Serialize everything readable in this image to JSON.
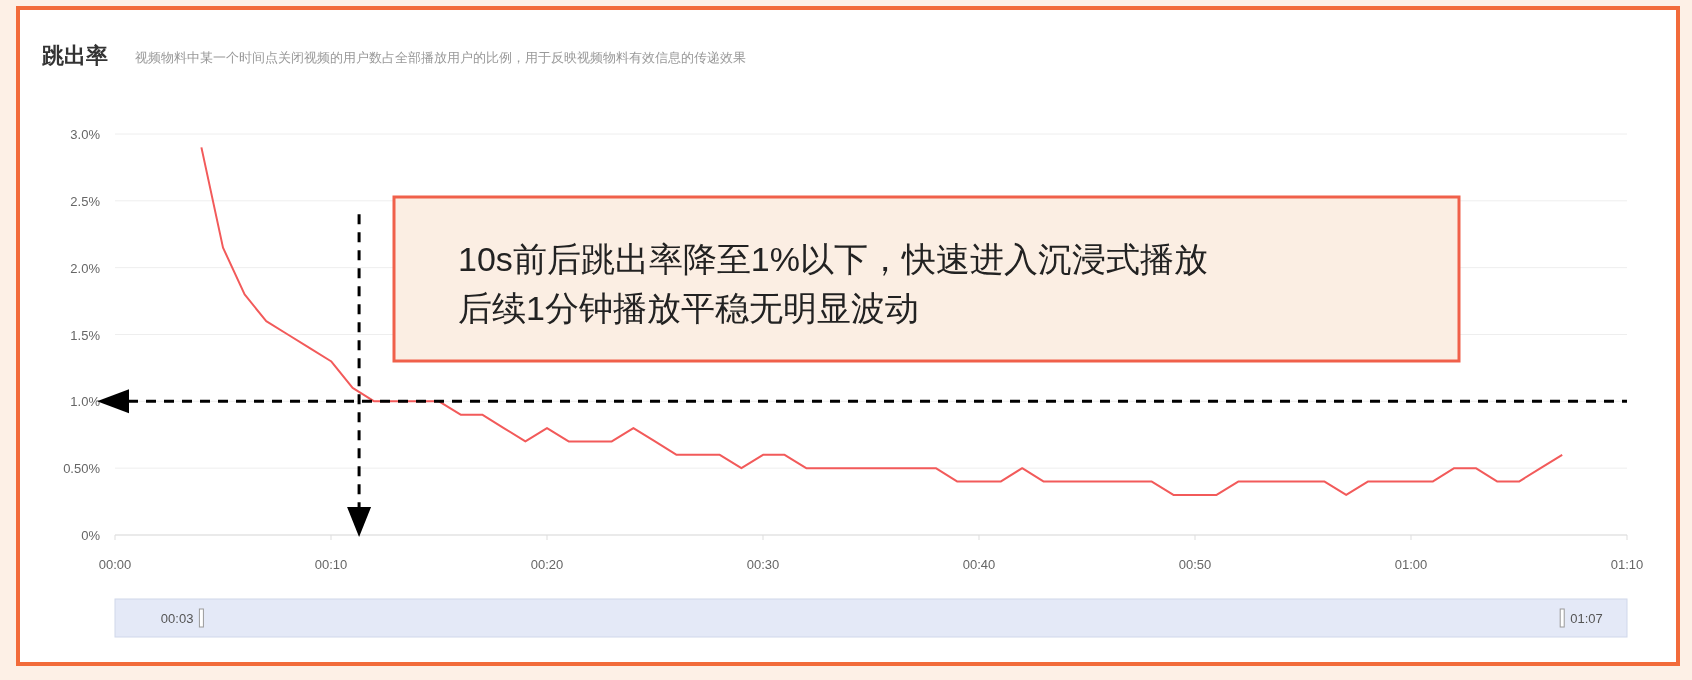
{
  "chart_data": {
    "type": "line",
    "title": "跳出率",
    "subtitle": "视频物料中某一个时间点关闭视频的用户数占全部播放用户的比例，用于反映视频物料有效信息的传递效果",
    "x": [
      4,
      5,
      6,
      7,
      8,
      9,
      10,
      11,
      12,
      13,
      14,
      15,
      16,
      17,
      18,
      19,
      20,
      21,
      22,
      23,
      24,
      25,
      26,
      27,
      28,
      29,
      30,
      31,
      32,
      33,
      34,
      35,
      36,
      37,
      38,
      39,
      40,
      41,
      42,
      43,
      44,
      45,
      46,
      47,
      48,
      49,
      50,
      51,
      52,
      53,
      54,
      55,
      56,
      57,
      58,
      59,
      60,
      61,
      62,
      63,
      64,
      65,
      66,
      67
    ],
    "series": [
      {
        "color": "#f25a5a",
        "values": [
          2.9,
          2.15,
          1.8,
          1.6,
          1.5,
          1.4,
          1.3,
          1.1,
          1.0,
          1.0,
          1.0,
          1.0,
          0.9,
          0.9,
          0.8,
          0.7,
          0.8,
          0.7,
          0.7,
          0.7,
          0.8,
          0.7,
          0.6,
          0.6,
          0.6,
          0.5,
          0.6,
          0.6,
          0.5,
          0.5,
          0.5,
          0.5,
          0.5,
          0.5,
          0.5,
          0.4,
          0.4,
          0.4,
          0.5,
          0.4,
          0.4,
          0.4,
          0.4,
          0.4,
          0.4,
          0.3,
          0.3,
          0.3,
          0.4,
          0.4,
          0.4,
          0.4,
          0.4,
          0.3,
          0.4,
          0.4,
          0.4,
          0.4,
          0.5,
          0.5,
          0.4,
          0.4,
          0.5,
          0.6
        ]
      }
    ],
    "xlim": [
      0,
      70
    ],
    "xticks": [
      {
        "value": 0,
        "label": "00:00"
      },
      {
        "value": 10,
        "label": "00:10"
      },
      {
        "value": 20,
        "label": "00:20"
      },
      {
        "value": 30,
        "label": "00:30"
      },
      {
        "value": 40,
        "label": "00:40"
      },
      {
        "value": 50,
        "label": "00:50"
      },
      {
        "value": 60,
        "label": "01:00"
      },
      {
        "value": 70,
        "label": "01:10"
      }
    ],
    "ylim": [
      0,
      3.0
    ],
    "yticks": [
      {
        "value": 0,
        "label": "0%"
      },
      {
        "value": 0.5,
        "label": "0.50%"
      },
      {
        "value": 1.0,
        "label": "1.0%"
      },
      {
        "value": 1.5,
        "label": "1.5%"
      },
      {
        "value": 2.0,
        "label": "2.0%"
      },
      {
        "value": 2.5,
        "label": "2.5%"
      },
      {
        "value": 3.0,
        "label": "3.0%"
      }
    ],
    "grid": "y",
    "marker": "none",
    "line_style": "solid",
    "ref_lines": [
      {
        "axis": "y",
        "value": 1.0,
        "color": "#000000",
        "line_style": "dashed"
      },
      {
        "axis": "x",
        "value": 11.3,
        "color": "#000000",
        "line_style": "dashed"
      }
    ],
    "annotations": [
      "10s前后跳出率降至1%以下，快速进入沉浸式播放",
      "后续1分钟播放平稳无明显波动",
      "00:03",
      "01:07"
    ]
  }
}
